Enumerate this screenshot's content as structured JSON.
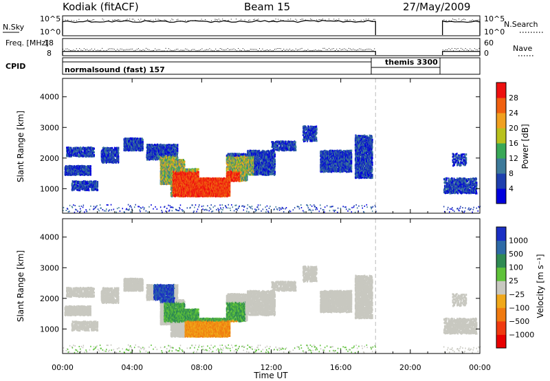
{
  "header": {
    "station": "Kodiak (fitACF)",
    "beam": "Beam 15",
    "date": "27/May/2009"
  },
  "chart_data": [
    {
      "type": "line",
      "name_label": "N.Sky",
      "right_label": "N.Search",
      "left_ticks": [
        "10^5",
        "10^0"
      ],
      "right_ticks": [
        "10^5",
        "10^0"
      ],
      "segments": [
        {
          "x": [
            0.0,
            18.0
          ],
          "level": 0.72
        },
        {
          "x": [
            21.85,
            24.0
          ],
          "level": 0.72
        }
      ]
    },
    {
      "type": "line",
      "name_label": "Freq. [MHz]",
      "right_label": "Nave",
      "left_ticks": [
        "18",
        "8"
      ],
      "right_ticks": [
        "60",
        "0"
      ],
      "ylim": [
        8,
        18
      ],
      "segments": [
        {
          "x": [
            0.0,
            18.0
          ],
          "freq": 10.5
        },
        {
          "x": [
            21.85,
            24.0
          ],
          "freq": 10.5
        }
      ]
    },
    {
      "type": "table",
      "name_label": "CPID",
      "modes": [
        {
          "label": "normalsound (fast) 157",
          "x_start": 0.0
        },
        {
          "label": "themis 3300",
          "x_start": 18.0
        }
      ]
    },
    {
      "type": "heatmap",
      "quantity": "power",
      "ylabel": "Slant Range [km]",
      "xlim": [
        0,
        24
      ],
      "ylim": [
        200,
        4600
      ],
      "yticks": [
        "1000",
        "2000",
        "3000",
        "4000"
      ],
      "colorbar_label": "Power [dB]",
      "colorbar_ticks": [
        "4",
        "8",
        "12",
        "16",
        "20",
        "24",
        "28"
      ],
      "colorbar_colors": [
        "#0000dd",
        "#1e3fae",
        "#3d7a9a",
        "#39a857",
        "#b8c11d",
        "#f0a020",
        "#f06010",
        "#ee1010"
      ]
    },
    {
      "type": "heatmap",
      "quantity": "velocity",
      "ylabel": "Slant Range [km]",
      "xlabel": "Time UT",
      "xlim": [
        0,
        24
      ],
      "ylim": [
        200,
        4600
      ],
      "xticks": [
        "00:00",
        "04:00",
        "08:00",
        "12:00",
        "16:00",
        "20:00",
        "00:00"
      ],
      "yticks": [
        "1000",
        "2000",
        "3000",
        "4000"
      ],
      "colorbar_label": "Velocity [m s⁻¹]",
      "colorbar_ticks": [
        "1000",
        "500",
        "100",
        "25",
        "−25",
        "−100",
        "−500",
        "−1000"
      ],
      "colorbar_colors": [
        "#1a2fc4",
        "#2e6aa6",
        "#2f8a53",
        "#5fc23a",
        "#c8c8c0",
        "#f0a81a",
        "#f07a10",
        "#f03a10",
        "#e80000"
      ]
    }
  ]
}
